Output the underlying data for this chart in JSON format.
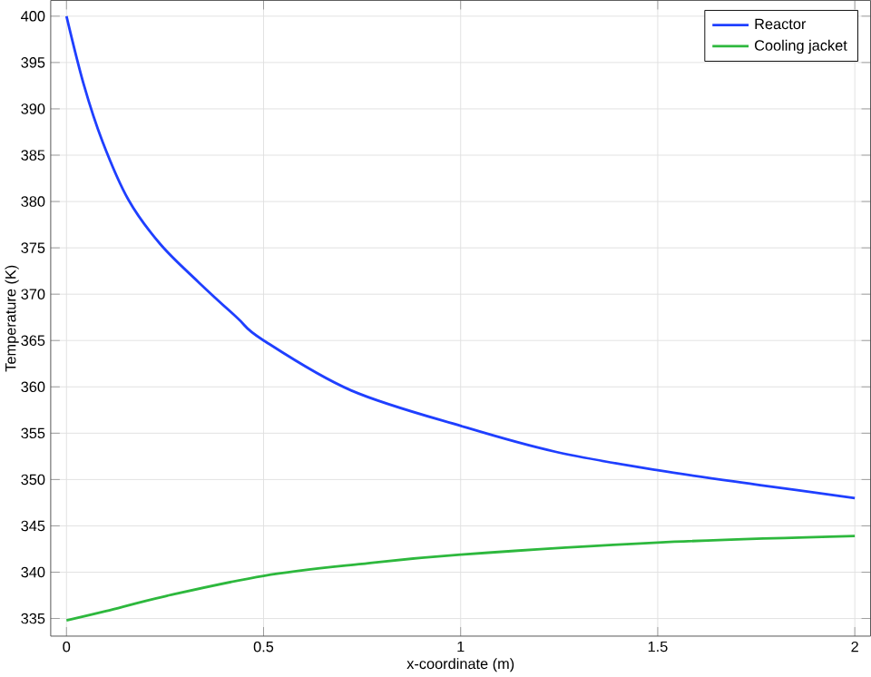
{
  "chart_data": {
    "type": "line",
    "xlabel": "x-coordinate (m)",
    "ylabel": "Temperature (K)",
    "xlim": [
      -0.04,
      2.04
    ],
    "ylim": [
      333.1,
      401.7
    ],
    "xticks": [
      0,
      0.5,
      1,
      1.5,
      2
    ],
    "yticks": [
      335,
      340,
      345,
      350,
      355,
      360,
      365,
      370,
      375,
      380,
      385,
      390,
      395,
      400
    ],
    "grid": true,
    "legend": "top right",
    "line_style": "solid",
    "marker": "none",
    "series": [
      {
        "name": "Reactor",
        "color": "#1f3fff",
        "x": [
          0,
          0.044,
          0.092,
          0.157,
          0.238,
          0.335,
          0.432,
          0.497,
          0.723,
          1.015,
          1.24,
          1.5,
          1.76,
          2
        ],
        "values": [
          400,
          392.6,
          386.4,
          380.2,
          375.4,
          371.3,
          367.5,
          365.1,
          359.6,
          355.6,
          353.0,
          351.0,
          349.4,
          348.0
        ]
      },
      {
        "name": "Cooling jacket",
        "color": "#2db83d",
        "x": [
          0,
          0.1,
          0.25,
          0.5,
          0.75,
          1,
          1.5,
          2
        ],
        "values": [
          334.8,
          335.8,
          337.4,
          339.6,
          340.9,
          341.9,
          343.2,
          343.9
        ]
      }
    ]
  }
}
